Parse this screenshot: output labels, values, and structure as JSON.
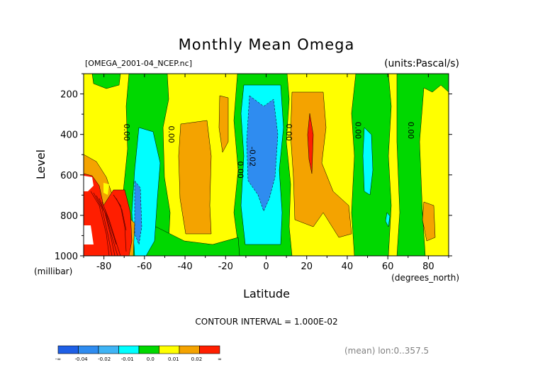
{
  "chart_data": {
    "type": "heatmap",
    "title": "Monthly Mean Omega",
    "file_label": "[OMEGA_2001-04_NCEP.nc]",
    "units_label": "(units:Pascal/s)",
    "xlabel": "Latitude",
    "x_unit_label": "(degrees_north)",
    "ylabel": "Level",
    "y_unit_label": "(millibar)",
    "xlim": [
      -90,
      90
    ],
    "ylim": [
      1000,
      100
    ],
    "x_ticks": [
      -80,
      -60,
      -40,
      -20,
      0,
      20,
      40,
      60,
      80
    ],
    "y_ticks": [
      200,
      400,
      600,
      800,
      1000
    ],
    "contour_interval_label": "CONTOUR INTERVAL = 1.000E-02",
    "mean_label": "(mean) lon:0..357.5",
    "contour_labels": [
      {
        "text": "0.00",
        "lat": -70,
        "level": 390
      },
      {
        "text": "0.00",
        "lat": -48,
        "level": 400
      },
      {
        "text": "0.00",
        "lat": -14,
        "level": 575
      },
      {
        "text": "-0.02",
        "lat": -8,
        "level": 510
      },
      {
        "text": "0.00",
        "lat": 10,
        "level": 390
      },
      {
        "text": "0.00",
        "lat": 44,
        "level": 380
      },
      {
        "text": "0.00",
        "lat": 70,
        "level": 380
      }
    ],
    "colorbar": {
      "colors": [
        "#1e5fe6",
        "#2f8cf0",
        "#3fb4f5",
        "#00ffff",
        "#00d800",
        "#ffff00",
        "#f4a300",
        "#ff1e00"
      ],
      "tick_labels": [
        "-∞",
        "-0.04",
        "-0.02",
        "-0.01",
        "0.0",
        "0.01",
        "0.02",
        "∞"
      ]
    },
    "fields": [
      {
        "level": "light_blue",
        "color": "#00ffff",
        "lat": [
          -58,
          -52
        ],
        "plevel": [
          400,
          1000
        ]
      },
      {
        "level": "light_blue",
        "color": "#00ffff",
        "lat": [
          -10,
          10
        ],
        "plevel": [
          170,
          950
        ]
      },
      {
        "level": "blue",
        "color": "#2f8cf0",
        "lat": [
          -6,
          6
        ],
        "plevel": [
          200,
          750
        ]
      },
      {
        "level": "orange",
        "color": "#f4a300",
        "lat": [
          -42,
          -32
        ],
        "plevel": [
          370,
          850
        ]
      },
      {
        "level": "orange",
        "color": "#f4a300",
        "lat": [
          14,
          30
        ],
        "plevel": [
          130,
          920
        ]
      },
      {
        "level": "red",
        "color": "#ff1e00",
        "lat": [
          21,
          24
        ],
        "plevel": [
          300,
          600
        ]
      },
      {
        "level": "red",
        "color": "#ff1e00",
        "lat": [
          -84,
          -68
        ],
        "plevel": [
          650,
          1000
        ]
      }
    ]
  }
}
